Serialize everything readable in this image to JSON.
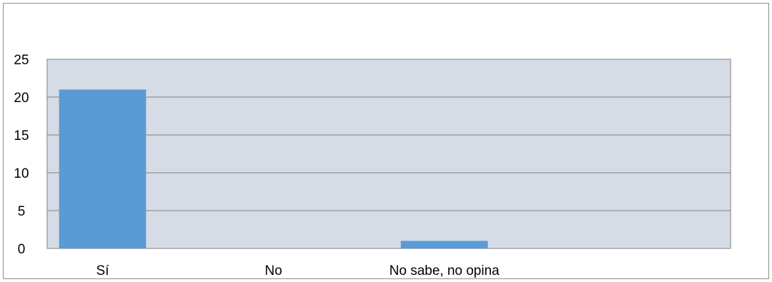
{
  "chart_data": {
    "type": "bar",
    "categories": [
      "Sí",
      "No",
      "No sabe, no opina",
      ""
    ],
    "values": [
      21,
      0,
      1,
      0
    ],
    "ylim": [
      0,
      25
    ],
    "yticks": [
      0,
      5,
      10,
      15,
      20,
      25
    ],
    "grid": true,
    "legend": "none",
    "colors": {
      "bar": "#5b9bd5",
      "plot_area": "#d6dce5",
      "gridline": "#808080"
    }
  }
}
